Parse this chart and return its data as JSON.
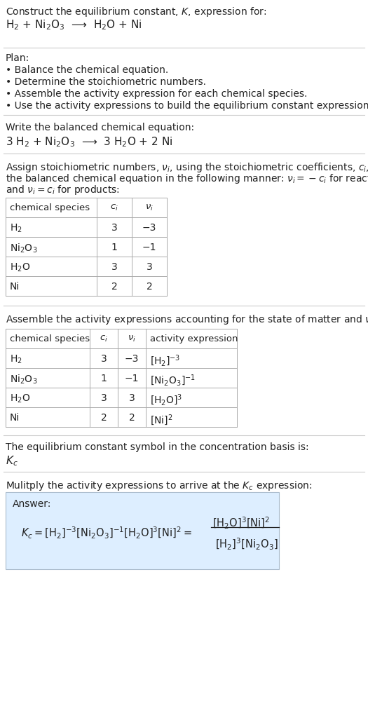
{
  "title_line1": "Construct the equilibrium constant, $K$, expression for:",
  "reaction_unbalanced": "H$_2$ + Ni$_2$O$_3$  ⟶  H$_2$O + Ni",
  "plan_header": "Plan:",
  "plan_items": [
    "• Balance the chemical equation.",
    "• Determine the stoichiometric numbers.",
    "• Assemble the activity expression for each chemical species.",
    "• Use the activity expressions to build the equilibrium constant expression."
  ],
  "balanced_header": "Write the balanced chemical equation:",
  "reaction_balanced": "3 H$_2$ + Ni$_2$O$_3$  ⟶  3 H$_2$O + 2 Ni",
  "stoich_header": "Assign stoichiometric numbers, $\\nu_i$, using the stoichiometric coefficients, $c_i$, from\nthe balanced chemical equation in the following manner: $\\nu_i = -c_i$ for reactants\nand $\\nu_i = c_i$ for products:",
  "table1_cols": [
    "chemical species",
    "$c_i$",
    "$\\nu_i$"
  ],
  "table1_data": [
    [
      "H$_2$",
      "3",
      "−3"
    ],
    [
      "Ni$_2$O$_3$",
      "1",
      "−1"
    ],
    [
      "H$_2$O",
      "3",
      "3"
    ],
    [
      "Ni",
      "2",
      "2"
    ]
  ],
  "activity_header": "Assemble the activity expressions accounting for the state of matter and $\\nu_i$:",
  "table2_cols": [
    "chemical species",
    "$c_i$",
    "$\\nu_i$",
    "activity expression"
  ],
  "table2_data": [
    [
      "H$_2$",
      "3",
      "−3",
      "[H$_2$]$^{-3}$"
    ],
    [
      "Ni$_2$O$_3$",
      "1",
      "−1",
      "[Ni$_2$O$_3$]$^{-1}$"
    ],
    [
      "H$_2$O",
      "3",
      "3",
      "[H$_2$O]$^3$"
    ],
    [
      "Ni",
      "2",
      "2",
      "[Ni]$^2$"
    ]
  ],
  "kc_header": "The equilibrium constant symbol in the concentration basis is:",
  "kc_symbol": "$K_c$",
  "multiply_header": "Mulitply the activity expressions to arrive at the $K_c$ expression:",
  "answer_label": "Answer:",
  "bg_color": "#ffffff",
  "table_border_color": "#aaaaaa",
  "section_line_color": "#cccccc",
  "answer_box_color": "#ddeeff",
  "answer_box_border": "#aabbcc",
  "text_color": "#222222",
  "gray_text": "#555555"
}
